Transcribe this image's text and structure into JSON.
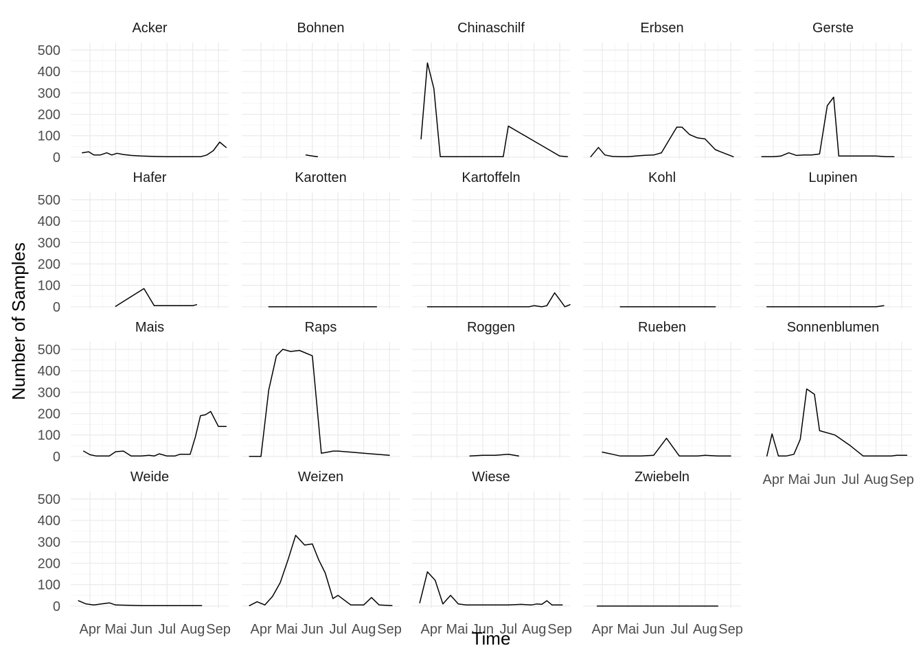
{
  "chart_data": {
    "type": "line",
    "xlabel": "Time",
    "ylabel": "Number of Samples",
    "ylim": [
      -10,
      535
    ],
    "y_ticks": [
      0,
      100,
      200,
      300,
      400,
      500
    ],
    "x_range": [
      0.25,
      6.4
    ],
    "x_ticks": [
      {
        "label": "Apr",
        "value": 1
      },
      {
        "label": "Mai",
        "value": 2
      },
      {
        "label": "Jun",
        "value": 3
      },
      {
        "label": "Jul",
        "value": 4
      },
      {
        "label": "Aug",
        "value": 5
      },
      {
        "label": "Sep",
        "value": 6
      }
    ],
    "x_unit": "month (1 = Apr … 6 = Sep)",
    "grid": true,
    "facets": [
      {
        "title": "Acker",
        "x": [
          0.7,
          0.95,
          1.15,
          1.4,
          1.65,
          1.85,
          2.05,
          2.3,
          2.6,
          3.0,
          3.5,
          4.0,
          4.5,
          5.0,
          5.3,
          5.55,
          5.8,
          6.05,
          6.3
        ],
        "y": [
          20,
          25,
          10,
          10,
          20,
          10,
          18,
          12,
          8,
          5,
          3,
          2,
          2,
          2,
          2,
          10,
          30,
          70,
          45
        ]
      },
      {
        "title": "Bohnen",
        "x": [
          2.75,
          3.0,
          3.2
        ],
        "y": [
          10,
          5,
          2
        ]
      },
      {
        "title": "Chinaschilf",
        "x": [
          0.6,
          0.85,
          1.1,
          1.35,
          2.0,
          3.0,
          3.8,
          4.0,
          4.5,
          5.0,
          5.5,
          6.0,
          6.3
        ],
        "y": [
          85,
          440,
          320,
          2,
          2,
          2,
          2,
          145,
          110,
          75,
          40,
          5,
          2
        ]
      },
      {
        "title": "Erbsen",
        "x": [
          0.55,
          0.85,
          1.1,
          1.4,
          1.7,
          2.0,
          2.3,
          2.6,
          3.0,
          3.3,
          3.6,
          3.9,
          4.1,
          4.4,
          4.7,
          5.0,
          5.4,
          5.6,
          6.1
        ],
        "y": [
          2,
          45,
          10,
          3,
          2,
          2,
          5,
          8,
          10,
          20,
          80,
          140,
          140,
          105,
          90,
          85,
          35,
          25,
          2
        ]
      },
      {
        "title": "Gerste",
        "x": [
          0.55,
          1.0,
          1.3,
          1.6,
          1.9,
          2.2,
          2.5,
          2.8,
          3.1,
          3.35,
          3.55,
          4.0,
          5.0,
          5.4,
          5.7
        ],
        "y": [
          2,
          2,
          5,
          20,
          8,
          10,
          10,
          15,
          240,
          280,
          5,
          5,
          5,
          2,
          2
        ]
      },
      {
        "title": "Hafer",
        "x": [
          2.0,
          3.1,
          3.5,
          4.0,
          4.6,
          5.0,
          5.15
        ],
        "y": [
          2,
          85,
          5,
          5,
          5,
          5,
          10
        ]
      },
      {
        "title": "Karotten",
        "x": [
          1.3,
          5.5
        ],
        "y": [
          0,
          0
        ]
      },
      {
        "title": "Kartoffeln",
        "x": [
          0.85,
          2.0,
          3.0,
          4.0,
          4.8,
          5.0,
          5.3,
          5.5,
          5.8,
          6.05,
          6.2,
          6.4
        ],
        "y": [
          0,
          0,
          0,
          0,
          0,
          5,
          0,
          5,
          65,
          25,
          0,
          10
        ]
      },
      {
        "title": "Kohl",
        "x": [
          1.7,
          5.4
        ],
        "y": [
          0,
          0
        ]
      },
      {
        "title": "Lupinen",
        "x": [
          0.75,
          3.0,
          5.0,
          5.3
        ],
        "y": [
          0,
          0,
          0,
          5
        ]
      },
      {
        "title": "Mais",
        "x": [
          0.75,
          1.0,
          1.25,
          1.75,
          2.0,
          2.3,
          2.6,
          3.0,
          3.3,
          3.5,
          3.7,
          4.0,
          4.3,
          4.5,
          4.9,
          5.1,
          5.3,
          5.5,
          5.7,
          6.0,
          6.3
        ],
        "y": [
          25,
          8,
          2,
          2,
          22,
          25,
          2,
          2,
          5,
          2,
          12,
          2,
          2,
          10,
          10,
          90,
          190,
          195,
          210,
          140,
          140
        ]
      },
      {
        "title": "Raps",
        "x": [
          0.55,
          1.0,
          1.3,
          1.6,
          1.85,
          2.15,
          2.5,
          3.0,
          3.35,
          3.6,
          3.8,
          4.0,
          4.5,
          5.0,
          5.5,
          6.0
        ],
        "y": [
          0,
          0,
          310,
          470,
          500,
          490,
          495,
          470,
          15,
          20,
          25,
          25,
          20,
          15,
          10,
          5
        ]
      },
      {
        "title": "Roggen",
        "x": [
          2.5,
          3.0,
          3.5,
          4.0,
          4.4
        ],
        "y": [
          2,
          5,
          5,
          10,
          2
        ]
      },
      {
        "title": "Rueben",
        "x": [
          1.0,
          1.4,
          1.7,
          2.0,
          2.5,
          3.0,
          3.5,
          4.0,
          4.5,
          4.7,
          5.0,
          5.5,
          6.0
        ],
        "y": [
          20,
          10,
          2,
          2,
          2,
          5,
          85,
          2,
          2,
          2,
          5,
          2,
          2
        ]
      },
      {
        "title": "Sonnenblumen",
        "x": [
          0.75,
          0.95,
          1.2,
          1.5,
          1.8,
          2.05,
          2.3,
          2.6,
          2.8,
          3.4,
          4.0,
          4.5,
          5.0,
          5.4,
          5.6,
          5.8,
          6.2
        ],
        "y": [
          2,
          105,
          2,
          2,
          10,
          80,
          315,
          290,
          120,
          100,
          50,
          2,
          2,
          2,
          2,
          5,
          5
        ]
      },
      {
        "title": "Weide",
        "x": [
          0.55,
          0.85,
          1.15,
          1.45,
          1.75,
          2.0,
          3.0,
          4.0,
          5.0,
          5.35
        ],
        "y": [
          25,
          10,
          5,
          10,
          15,
          5,
          2,
          2,
          2,
          2
        ]
      },
      {
        "title": "Weizen",
        "x": [
          0.55,
          0.85,
          1.15,
          1.45,
          1.75,
          2.05,
          2.35,
          2.7,
          3.0,
          3.25,
          3.5,
          3.8,
          4.0,
          4.5,
          4.8,
          5.0,
          5.3,
          5.6,
          6.1
        ],
        "y": [
          2,
          20,
          5,
          45,
          110,
          215,
          330,
          285,
          290,
          215,
          155,
          35,
          50,
          5,
          5,
          5,
          40,
          5,
          2
        ]
      },
      {
        "title": "Wiese",
        "x": [
          0.55,
          0.85,
          1.15,
          1.45,
          1.75,
          2.05,
          2.35,
          3.0,
          4.0,
          4.5,
          4.9,
          5.1,
          5.3,
          5.5,
          5.7,
          6.1
        ],
        "y": [
          15,
          160,
          120,
          10,
          50,
          10,
          5,
          5,
          5,
          8,
          5,
          10,
          8,
          25,
          5,
          5
        ]
      },
      {
        "title": "Zwiebeln",
        "x": [
          0.8,
          3.0,
          5.0,
          5.5
        ],
        "y": [
          0,
          0,
          0,
          0
        ]
      }
    ]
  }
}
